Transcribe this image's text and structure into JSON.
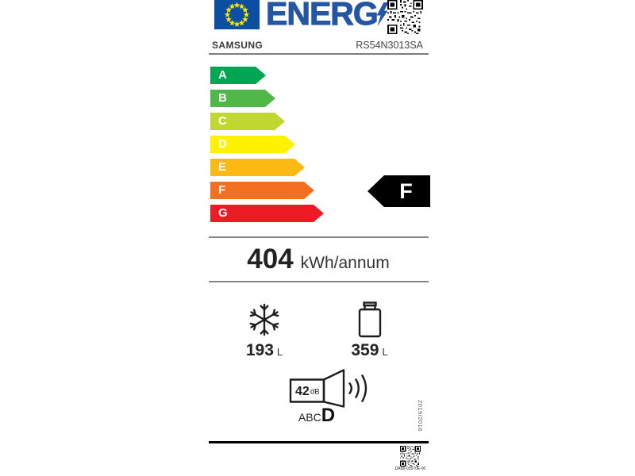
{
  "header": {
    "energ_text": "ENERG",
    "eu_flag": {
      "stars": 12
    },
    "icons": [
      "eu-flag-icon",
      "lightning-bolt-icon",
      "qr-code-icon"
    ]
  },
  "brand": {
    "supplier": "SAMSUNG",
    "model": "RS54N3013SA"
  },
  "rating": {
    "classes": [
      {
        "label": "A",
        "color": "#00A651"
      },
      {
        "label": "B",
        "color": "#50B848"
      },
      {
        "label": "C",
        "color": "#BFD730"
      },
      {
        "label": "D",
        "color": "#FFF200"
      },
      {
        "label": "E",
        "color": "#FDB913"
      },
      {
        "label": "F",
        "color": "#F36F21"
      },
      {
        "label": "G",
        "color": "#ED1C24"
      }
    ],
    "selected": {
      "label": "F",
      "bg": "#000000",
      "text_color": "#FFFFFF"
    }
  },
  "energy": {
    "value": "404",
    "unit": "kWh/annum"
  },
  "compartments": {
    "freezer": {
      "icon": "snowflake-icon",
      "value": "193",
      "unit": "L"
    },
    "fridge": {
      "icon": "bottle-icon",
      "value": "359",
      "unit": "L"
    }
  },
  "noise": {
    "icon": "speaker-icon",
    "db_value": "42",
    "db_unit": "dB",
    "scale_letters": "ABC",
    "class": "D"
  },
  "regulation": {
    "text": "2019/2016"
  },
  "footer": {
    "part_number": "DA68-03570E-00"
  },
  "colors": {
    "accent_blue": "#2456A4",
    "flag_blue": "#0B4EA2",
    "star_yellow": "#FFE800"
  }
}
